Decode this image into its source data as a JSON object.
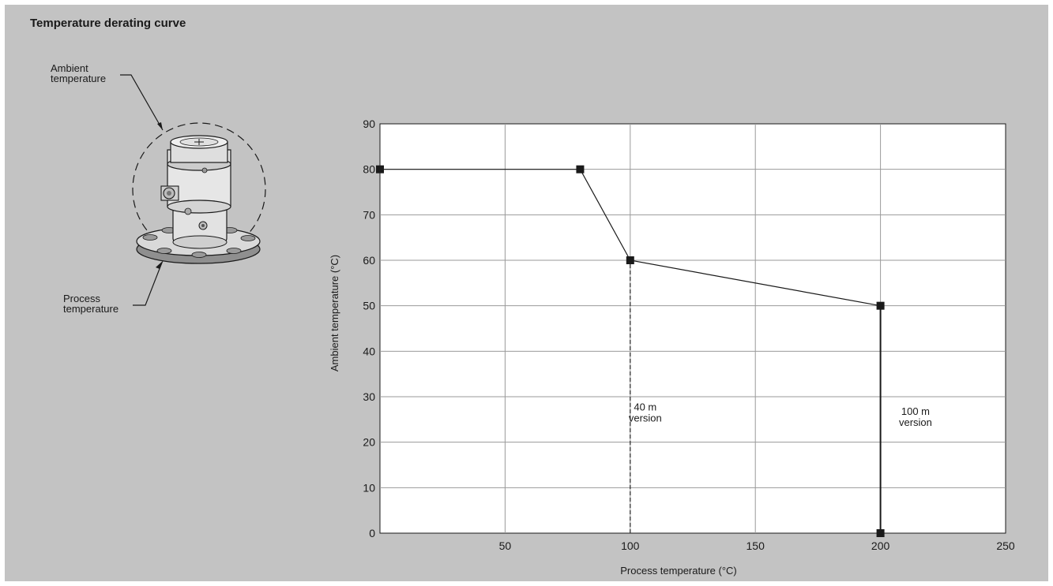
{
  "title": "Temperature derating curve",
  "callouts": {
    "ambient": [
      "Ambient",
      "temperature"
    ],
    "process": [
      "Process",
      "temperature"
    ]
  },
  "colors": {
    "background": "#c3c3c3",
    "plot_area": "#ffffff",
    "line": "#1a1a1a"
  },
  "chart_data": {
    "type": "line",
    "xlabel": "Process temperature (°C)",
    "ylabel": "Ambient temperature (°C)",
    "xlim": [
      0,
      250
    ],
    "ylim": [
      0,
      90
    ],
    "xticks": [
      50,
      100,
      150,
      200,
      250
    ],
    "yticks": [
      0,
      10,
      20,
      30,
      40,
      50,
      60,
      70,
      80,
      90
    ],
    "grid": true,
    "series": [
      {
        "x": [
          0,
          80,
          100,
          200
        ],
        "y": [
          80,
          80,
          60,
          50
        ]
      }
    ],
    "limits": [
      {
        "x": 100,
        "y_from": 0,
        "y_to": 60,
        "style": "dashed",
        "label": [
          "40 m",
          "version"
        ],
        "label_xy": [
          106,
          27
        ]
      },
      {
        "x": 200,
        "y_from": 0,
        "y_to": 50,
        "style": "solid",
        "label": [
          "100 m",
          "version"
        ],
        "label_xy": [
          214,
          26
        ]
      }
    ],
    "markers": [
      [
        0,
        80
      ],
      [
        80,
        80
      ],
      [
        100,
        60
      ],
      [
        200,
        50
      ],
      [
        200,
        0
      ]
    ]
  }
}
